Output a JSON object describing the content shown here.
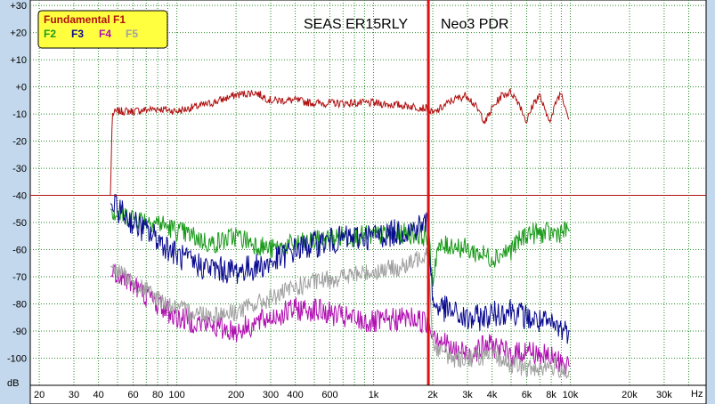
{
  "chart_data": {
    "type": "line",
    "titles": [
      "SEAS ER15RLY",
      "Neo3 PDR"
    ],
    "xlabel": "Hz",
    "ylabel": "dB",
    "x_scale": "log",
    "xlim": [
      18,
      49000
    ],
    "ylim": [
      -110,
      32
    ],
    "grid": true,
    "legend_position": "top-left",
    "reference_level": -40,
    "crossover_hz": 1900,
    "x_tick_labels": [
      {
        "v": 20,
        "t": "20"
      },
      {
        "v": 30,
        "t": "30"
      },
      {
        "v": 40,
        "t": "40"
      },
      {
        "v": 60,
        "t": "60"
      },
      {
        "v": 80,
        "t": "80"
      },
      {
        "v": 100,
        "t": "100"
      },
      {
        "v": 200,
        "t": "200"
      },
      {
        "v": 300,
        "t": "300"
      },
      {
        "v": 400,
        "t": "400"
      },
      {
        "v": 600,
        "t": "600"
      },
      {
        "v": 1000,
        "t": "1k"
      },
      {
        "v": 2000,
        "t": "2k"
      },
      {
        "v": 3000,
        "t": "3k"
      },
      {
        "v": 4000,
        "t": "4k"
      },
      {
        "v": 6000,
        "t": "6k"
      },
      {
        "v": 8000,
        "t": "8k"
      },
      {
        "v": 10000,
        "t": "10k"
      },
      {
        "v": 20000,
        "t": "20k"
      },
      {
        "v": 30000,
        "t": "30k"
      }
    ],
    "y_tick_labels": [
      {
        "v": 30,
        "t": "+30"
      },
      {
        "v": 20,
        "t": "+20"
      },
      {
        "v": 10,
        "t": "+10"
      },
      {
        "v": 0,
        "t": "+0"
      },
      {
        "v": -10,
        "t": "-10"
      },
      {
        "v": -20,
        "t": "-20"
      },
      {
        "v": -30,
        "t": "-30"
      },
      {
        "v": -40,
        "t": "-40"
      },
      {
        "v": -50,
        "t": "-50"
      },
      {
        "v": -60,
        "t": "-60"
      },
      {
        "v": -70,
        "t": "-70"
      },
      {
        "v": -80,
        "t": "-80"
      },
      {
        "v": -90,
        "t": "-90"
      },
      {
        "v": -100,
        "t": "-100"
      }
    ],
    "series": [
      {
        "name": "Fundamental F1",
        "color": "#b01010",
        "x": [
          46,
          47,
          50,
          60,
          80,
          100,
          150,
          200,
          250,
          300,
          400,
          500,
          700,
          1000,
          1500,
          1900,
          2000,
          2500,
          3000,
          3500,
          3700,
          4000,
          4500,
          5000,
          5500,
          6000,
          6500,
          7000,
          7500,
          8000,
          8500,
          9000,
          9500,
          9800
        ],
        "y": [
          -40,
          -10,
          -9,
          -9,
          -8,
          -9,
          -6,
          -3,
          -2,
          -5,
          -5,
          -6,
          -6,
          -6,
          -7,
          -8,
          -10,
          -5,
          -3,
          -10,
          -13,
          -8,
          -3,
          -2,
          -6,
          -13,
          -6,
          -3,
          -10,
          -12,
          -5,
          -2,
          -8,
          -12
        ]
      },
      {
        "name": "F2",
        "color": "#1a9a1a",
        "x": [
          46,
          50,
          60,
          80,
          100,
          120,
          150,
          200,
          300,
          400,
          500,
          700,
          1000,
          1500,
          1900,
          2000,
          2100,
          2500,
          3000,
          4000,
          5000,
          6000,
          8000,
          10000
        ],
        "y": [
          -45,
          -47,
          -48,
          -50,
          -53,
          -55,
          -58,
          -55,
          -60,
          -58,
          -57,
          -55,
          -55,
          -54,
          -55,
          -72,
          -60,
          -58,
          -60,
          -63,
          -60,
          -54,
          -54,
          -53
        ]
      },
      {
        "name": "F3",
        "color": "#0a0a90",
        "x": [
          46,
          50,
          60,
          80,
          100,
          120,
          150,
          200,
          300,
          400,
          500,
          700,
          1000,
          1500,
          1900,
          2000,
          2500,
          3000,
          4000,
          5000,
          6000,
          8000,
          10000
        ],
        "y": [
          -43,
          -45,
          -50,
          -56,
          -62,
          -65,
          -67,
          -68,
          -65,
          -60,
          -58,
          -56,
          -55,
          -53,
          -50,
          -80,
          -83,
          -86,
          -84,
          -82,
          -85,
          -88,
          -90
        ]
      },
      {
        "name": "F4",
        "color": "#b010b0",
        "x": [
          46,
          50,
          60,
          80,
          100,
          150,
          200,
          300,
          400,
          500,
          700,
          1000,
          1500,
          1900,
          2000,
          2500,
          3000,
          4000,
          5000,
          6000,
          8000,
          10000
        ],
        "y": [
          -70,
          -68,
          -73,
          -80,
          -85,
          -88,
          -90,
          -85,
          -82,
          -82,
          -85,
          -87,
          -85,
          -87,
          -90,
          -97,
          -98,
          -95,
          -99,
          -97,
          -100,
          -103
        ]
      },
      {
        "name": "F5",
        "color": "#a0a0a0",
        "x": [
          46,
          50,
          60,
          80,
          100,
          150,
          200,
          300,
          400,
          500,
          700,
          1000,
          1500,
          1900,
          2000,
          2500,
          3000,
          4000,
          5000,
          6000,
          8000,
          10000
        ],
        "y": [
          -66,
          -68,
          -72,
          -78,
          -82,
          -84,
          -83,
          -78,
          -74,
          -72,
          -70,
          -68,
          -66,
          -60,
          -95,
          -100,
          -100,
          -99,
          -102,
          -104,
          -103,
          -105
        ]
      }
    ]
  }
}
